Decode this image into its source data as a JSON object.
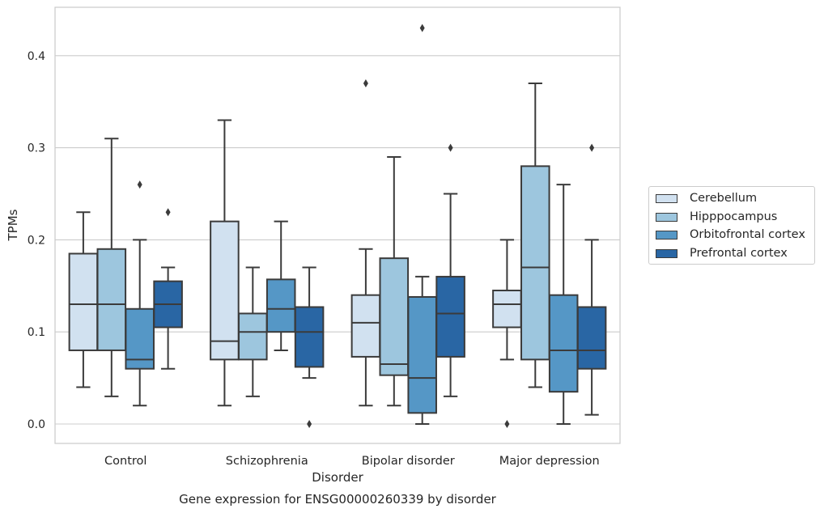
{
  "chart_data": {
    "type": "box",
    "title": "Gene expression for ENSG00000260339 by disorder",
    "xlabel": "Disorder",
    "ylabel": "TPMs",
    "ylim": [
      -0.02,
      0.455
    ],
    "yticks": [
      "0.0",
      "0.1",
      "0.2",
      "0.3",
      "0.4"
    ],
    "grid": "horizontal",
    "legend_position": "right",
    "categories": [
      "Control",
      "Schizophrenia",
      "Bipolar disorder",
      "Major depression"
    ],
    "series": [
      {
        "name": "Cerebellum",
        "color": "#d1e1f0",
        "boxes": [
          {
            "min": 0.04,
            "q1": 0.08,
            "median": 0.13,
            "q3": 0.185,
            "max": 0.23,
            "outliers": []
          },
          {
            "min": 0.02,
            "q1": 0.07,
            "median": 0.09,
            "q3": 0.22,
            "max": 0.33,
            "outliers": []
          },
          {
            "min": 0.02,
            "q1": 0.073,
            "median": 0.11,
            "q3": 0.14,
            "max": 0.19,
            "outliers": [
              0.37
            ]
          },
          {
            "min": 0.07,
            "q1": 0.105,
            "median": 0.13,
            "q3": 0.145,
            "max": 0.2,
            "outliers": [
              0.0
            ]
          }
        ]
      },
      {
        "name": "Hipppocampus",
        "color": "#9dc6de",
        "boxes": [
          {
            "min": 0.03,
            "q1": 0.08,
            "median": 0.13,
            "q3": 0.19,
            "max": 0.31,
            "outliers": []
          },
          {
            "min": 0.03,
            "q1": 0.07,
            "median": 0.1,
            "q3": 0.12,
            "max": 0.17,
            "outliers": []
          },
          {
            "min": 0.02,
            "q1": 0.053,
            "median": 0.065,
            "q3": 0.18,
            "max": 0.29,
            "outliers": []
          },
          {
            "min": 0.04,
            "q1": 0.07,
            "median": 0.17,
            "q3": 0.28,
            "max": 0.37,
            "outliers": []
          }
        ]
      },
      {
        "name": "Orbitofrontal cortex",
        "color": "#5597c6",
        "boxes": [
          {
            "min": 0.02,
            "q1": 0.06,
            "median": 0.07,
            "q3": 0.125,
            "max": 0.2,
            "outliers": [
              0.26
            ]
          },
          {
            "min": 0.08,
            "q1": 0.1,
            "median": 0.125,
            "q3": 0.157,
            "max": 0.22,
            "outliers": []
          },
          {
            "min": 0.0,
            "q1": 0.012,
            "median": 0.05,
            "q3": 0.138,
            "max": 0.16,
            "outliers": [
              0.43
            ]
          },
          {
            "min": 0.0,
            "q1": 0.035,
            "median": 0.08,
            "q3": 0.14,
            "max": 0.26,
            "outliers": []
          }
        ]
      },
      {
        "name": "Prefrontal cortex",
        "color": "#2966a4",
        "boxes": [
          {
            "min": 0.06,
            "q1": 0.105,
            "median": 0.13,
            "q3": 0.155,
            "max": 0.17,
            "outliers": [
              0.23
            ]
          },
          {
            "min": 0.05,
            "q1": 0.062,
            "median": 0.1,
            "q3": 0.127,
            "max": 0.17,
            "outliers": [
              0.0
            ]
          },
          {
            "min": 0.03,
            "q1": 0.073,
            "median": 0.12,
            "q3": 0.16,
            "max": 0.25,
            "outliers": [
              0.3
            ]
          },
          {
            "min": 0.01,
            "q1": 0.06,
            "median": 0.08,
            "q3": 0.127,
            "max": 0.2,
            "outliers": [
              0.3
            ]
          }
        ]
      }
    ]
  }
}
